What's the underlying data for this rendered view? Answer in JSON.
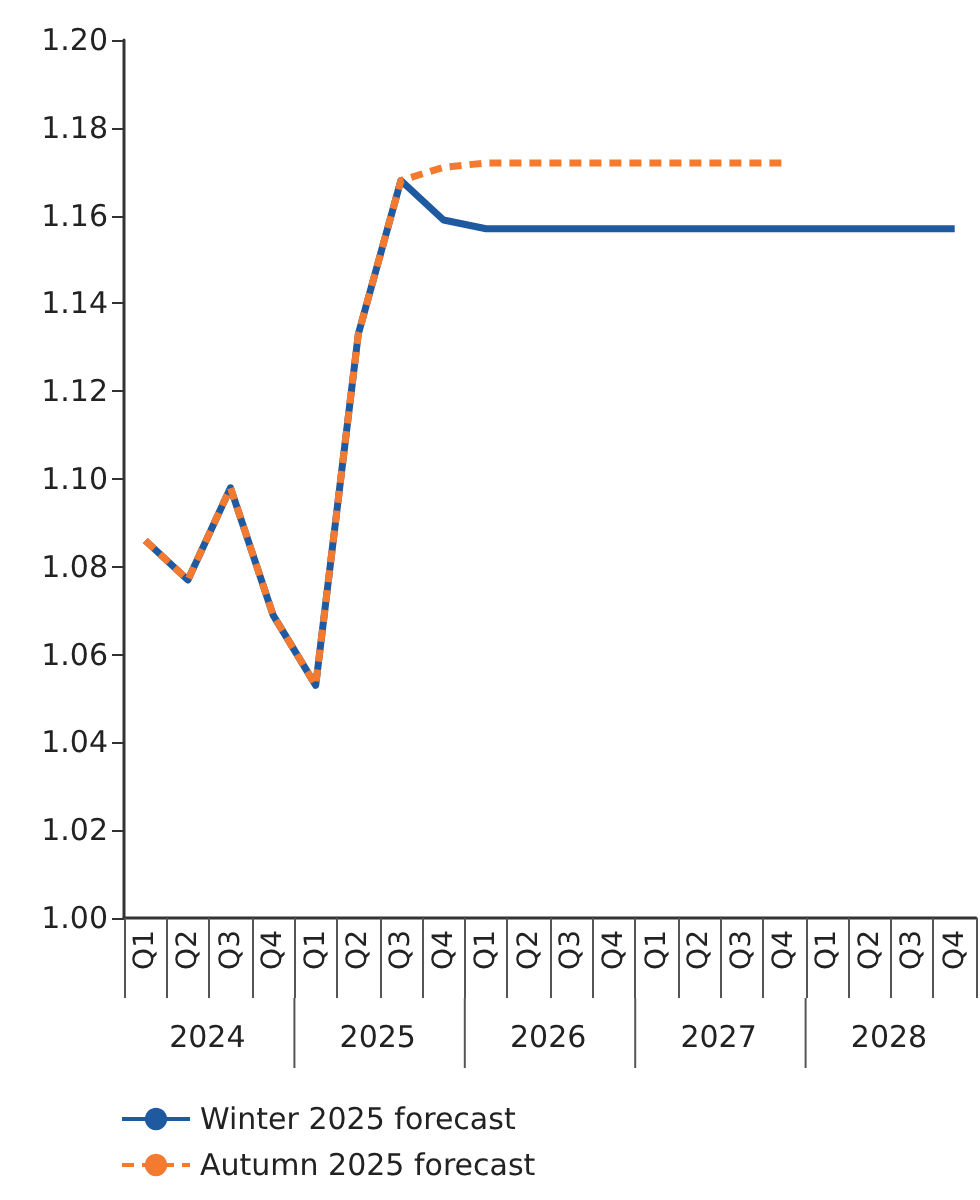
{
  "chart_data": {
    "type": "line",
    "categories": [
      "Q1",
      "Q2",
      "Q3",
      "Q4",
      "Q1",
      "Q2",
      "Q3",
      "Q4",
      "Q1",
      "Q2",
      "Q3",
      "Q4",
      "Q1",
      "Q2",
      "Q3",
      "Q4",
      "Q1",
      "Q2",
      "Q3",
      "Q4"
    ],
    "annotations": [
      "2024",
      "2025",
      "2026",
      "2027",
      "2028"
    ],
    "series": [
      {
        "name": "Winter 2025 forecast",
        "color": "#1f5aa0",
        "line_style": "solid",
        "values": [
          1.086,
          1.077,
          1.098,
          1.069,
          1.053,
          1.133,
          1.168,
          1.159,
          1.157,
          1.157,
          1.157,
          1.157,
          1.157,
          1.157,
          1.157,
          1.157,
          1.157,
          1.157,
          1.157,
          1.157
        ]
      },
      {
        "name": "Autumn 2025 forecast",
        "color": "#f47a30",
        "line_style": "dashed",
        "values": [
          1.086,
          1.077,
          1.098,
          1.069,
          1.053,
          1.133,
          1.168,
          1.171,
          1.172,
          1.172,
          1.172,
          1.172,
          1.172,
          1.172,
          1.172,
          1.172,
          null,
          null,
          null,
          null
        ]
      }
    ],
    "ylim": [
      1.0,
      1.2
    ],
    "yticks": [
      {
        "value": 1.0,
        "label": "1.00"
      },
      1.02,
      1.04,
      1.06,
      1.08,
      {
        "value": 1.1,
        "label": "1.10"
      },
      1.12,
      1.14,
      1.16,
      1.18,
      {
        "value": 1.2,
        "label": "1.20"
      }
    ],
    "grid": false,
    "legend": "bottom left",
    "marker": "none"
  }
}
